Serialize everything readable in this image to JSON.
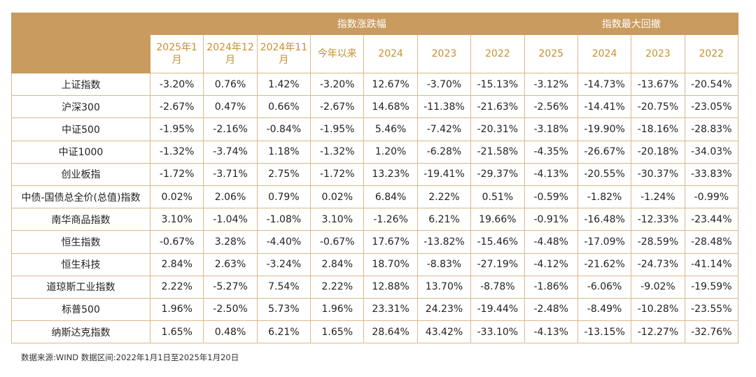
{
  "header": {
    "group_change": "指数涨跌幅",
    "group_drawdown": "指数最大回撤",
    "change_columns": [
      "2025年1月",
      "2024年12月",
      "2024年11月",
      "今年以来",
      "2024",
      "2023",
      "2022"
    ],
    "drawdown_columns": [
      "2025",
      "2024",
      "2023",
      "2022"
    ]
  },
  "rows": [
    {
      "name": "上证指数",
      "values": [
        "-3.20%",
        "0.76%",
        "1.42%",
        "-3.20%",
        "12.67%",
        "-3.70%",
        "-15.13%",
        "-3.12%",
        "-14.73%",
        "-13.67%",
        "-20.54%"
      ]
    },
    {
      "name": "沪深300",
      "values": [
        "-2.67%",
        "0.47%",
        "0.66%",
        "-2.67%",
        "14.68%",
        "-11.38%",
        "-21.63%",
        "-2.56%",
        "-14.41%",
        "-20.75%",
        "-23.05%"
      ]
    },
    {
      "name": "中证500",
      "values": [
        "-1.95%",
        "-2.16%",
        "-0.84%",
        "-1.95%",
        "5.46%",
        "-7.42%",
        "-20.31%",
        "-3.18%",
        "-19.90%",
        "-18.16%",
        "-28.83%"
      ]
    },
    {
      "name": "中证1000",
      "values": [
        "-1.32%",
        "-3.74%",
        "1.18%",
        "-1.32%",
        "1.20%",
        "-6.28%",
        "-21.58%",
        "-4.35%",
        "-26.67%",
        "-20.18%",
        "-34.03%"
      ]
    },
    {
      "name": "创业板指",
      "values": [
        "-1.72%",
        "-3.71%",
        "2.75%",
        "-1.72%",
        "13.23%",
        "-19.41%",
        "-29.37%",
        "-4.13%",
        "-20.55%",
        "-30.37%",
        "-33.83%"
      ]
    },
    {
      "name": "中债-国债总全价(总值)指数",
      "values": [
        "0.02%",
        "2.06%",
        "0.79%",
        "0.02%",
        "6.84%",
        "2.22%",
        "0.51%",
        "-0.59%",
        "-1.82%",
        "-1.24%",
        "-0.99%"
      ]
    },
    {
      "name": "南华商品指数",
      "values": [
        "3.10%",
        "-1.04%",
        "-1.08%",
        "3.10%",
        "-1.26%",
        "6.21%",
        "19.66%",
        "-0.91%",
        "-16.48%",
        "-12.33%",
        "-23.44%"
      ]
    },
    {
      "name": "恒生指数",
      "values": [
        "-0.67%",
        "3.28%",
        "-4.40%",
        "-0.67%",
        "17.67%",
        "-13.82%",
        "-15.46%",
        "-4.48%",
        "-17.09%",
        "-28.59%",
        "-28.48%"
      ]
    },
    {
      "name": "恒生科技",
      "values": [
        "2.84%",
        "2.63%",
        "-3.24%",
        "2.84%",
        "18.70%",
        "-8.83%",
        "-27.19%",
        "-4.12%",
        "-21.62%",
        "-24.73%",
        "-41.14%"
      ]
    },
    {
      "name": "道琼斯工业指数",
      "values": [
        "2.22%",
        "-5.27%",
        "7.54%",
        "2.22%",
        "12.88%",
        "13.70%",
        "-8.78%",
        "-1.86%",
        "-6.06%",
        "-9.02%",
        "-19.59%"
      ]
    },
    {
      "name": "标普500",
      "values": [
        "1.96%",
        "-2.50%",
        "5.73%",
        "1.96%",
        "23.31%",
        "24.23%",
        "-19.44%",
        "-2.48%",
        "-8.49%",
        "-10.28%",
        "-23.55%"
      ]
    },
    {
      "name": "纳斯达克指数",
      "values": [
        "1.65%",
        "0.48%",
        "6.21%",
        "1.65%",
        "28.64%",
        "43.42%",
        "-33.10%",
        "-4.13%",
        "-13.15%",
        "-12.27%",
        "-32.76%"
      ]
    }
  ],
  "footer": {
    "source": "数据来源:WIND 数据区间:2022年1月1日至2025年1月20日"
  },
  "colors": {
    "header_bg": "#c99b5f",
    "header_sub_text": "#c7902f",
    "border": "#d9b98a"
  }
}
